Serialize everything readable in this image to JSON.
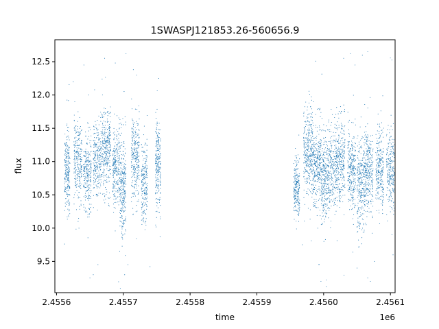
{
  "chart_data": {
    "type": "scatter",
    "title": "1SWASPJ121853.26-560656.9",
    "xlabel": "time",
    "ylabel": "flux",
    "x_offset_label": "1e6",
    "xlim": [
      2455597.5,
      2456107.0
    ],
    "ylim": [
      9.03,
      12.83
    ],
    "x_ticks": [
      2455600,
      2455700,
      2455800,
      2455900,
      2456000,
      2456100
    ],
    "x_tick_labels": [
      "2.4556",
      "2.4557",
      "2.4558",
      "2.4559",
      "2.4560",
      "2.4561"
    ],
    "y_ticks": [
      9.5,
      10.0,
      10.5,
      11.0,
      11.5,
      12.0,
      12.5
    ],
    "y_tick_labels": [
      "9.5",
      "10.0",
      "10.5",
      "11.0",
      "11.5",
      "12.0",
      "12.5"
    ],
    "grid": false,
    "marker_color": "#1f77b4",
    "observing_blocks": [
      {
        "x0": 2455612,
        "x1": 2455620,
        "center": 10.85,
        "spread": 0.28,
        "n": 240
      },
      {
        "x0": 2455626,
        "x1": 2455638,
        "center": 11.0,
        "spread": 0.3,
        "n": 260
      },
      {
        "x0": 2455640,
        "x1": 2455652,
        "center": 10.8,
        "spread": 0.28,
        "n": 260
      },
      {
        "x0": 2455655,
        "x1": 2455667,
        "center": 11.0,
        "spread": 0.3,
        "n": 260
      },
      {
        "x0": 2455668,
        "x1": 2455681,
        "center": 11.2,
        "spread": 0.32,
        "n": 320
      },
      {
        "x0": 2455684,
        "x1": 2455694,
        "center": 10.9,
        "spread": 0.3,
        "n": 240
      },
      {
        "x0": 2455694,
        "x1": 2455704,
        "center": 10.6,
        "spread": 0.38,
        "n": 300
      },
      {
        "x0": 2455712,
        "x1": 2455724,
        "center": 11.05,
        "spread": 0.3,
        "n": 280
      },
      {
        "x0": 2455727,
        "x1": 2455736,
        "center": 10.7,
        "spread": 0.3,
        "n": 220
      },
      {
        "x0": 2455748,
        "x1": 2455756,
        "center": 10.95,
        "spread": 0.35,
        "n": 240
      },
      {
        "x0": 2455955,
        "x1": 2455964,
        "center": 10.6,
        "spread": 0.22,
        "n": 220
      },
      {
        "x0": 2455970,
        "x1": 2455984,
        "center": 11.15,
        "spread": 0.3,
        "n": 340
      },
      {
        "x0": 2455984,
        "x1": 2455996,
        "center": 10.95,
        "spread": 0.3,
        "n": 300
      },
      {
        "x0": 2455996,
        "x1": 2456006,
        "center": 10.75,
        "spread": 0.32,
        "n": 260
      },
      {
        "x0": 2456006,
        "x1": 2456018,
        "center": 10.9,
        "spread": 0.3,
        "n": 260
      },
      {
        "x0": 2456018,
        "x1": 2456032,
        "center": 11.0,
        "spread": 0.3,
        "n": 320
      },
      {
        "x0": 2456036,
        "x1": 2456048,
        "center": 10.85,
        "spread": 0.3,
        "n": 280
      },
      {
        "x0": 2456050,
        "x1": 2456062,
        "center": 10.7,
        "spread": 0.35,
        "n": 300
      },
      {
        "x0": 2456062,
        "x1": 2456074,
        "center": 10.85,
        "spread": 0.3,
        "n": 280
      },
      {
        "x0": 2456078,
        "x1": 2456090,
        "center": 10.9,
        "spread": 0.3,
        "n": 260
      },
      {
        "x0": 2456094,
        "x1": 2456106,
        "center": 10.85,
        "spread": 0.28,
        "n": 240
      }
    ],
    "outliers": [
      [
        2455625,
        12.2
      ],
      [
        2455641,
        12.45
      ],
      [
        2455648,
        12.0
      ],
      [
        2455672,
        12.55
      ],
      [
        2455688,
        12.48
      ],
      [
        2455704,
        12.62
      ],
      [
        2455715,
        12.38
      ],
      [
        2455720,
        12.3
      ],
      [
        2455612,
        9.76
      ],
      [
        2455650,
        9.25
      ],
      [
        2455655,
        9.3
      ],
      [
        2455662,
        9.45
      ],
      [
        2455702,
        9.3
      ],
      [
        2455707,
        9.45
      ],
      [
        2455740,
        9.42
      ],
      [
        2456030,
        12.55
      ],
      [
        2456040,
        12.62
      ],
      [
        2456058,
        12.6
      ],
      [
        2456066,
        12.65
      ],
      [
        2456047,
        12.45
      ],
      [
        2455996,
        9.2
      ],
      [
        2456004,
        9.22
      ],
      [
        2456050,
        9.4
      ],
      [
        2456070,
        9.2
      ],
      [
        2456066,
        9.25
      ],
      [
        2455968,
        9.75
      ],
      [
        2455993,
        9.45
      ],
      [
        2456076,
        9.5
      ]
    ]
  }
}
